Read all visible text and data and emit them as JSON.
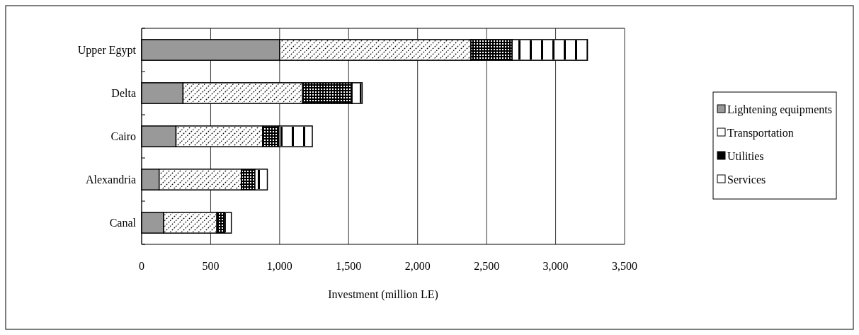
{
  "chart_data": {
    "type": "bar",
    "orientation": "horizontal",
    "stacked": true,
    "xlabel": "Investment (million LE)",
    "categories": [
      "Upper Egypt",
      "Delta",
      "Cairo",
      "Alexandria",
      "Canal"
    ],
    "series": [
      {
        "name": "Lightening equipments",
        "color": "#999999",
        "values": [
          1000,
          300,
          249,
          127,
          160
        ]
      },
      {
        "name": "Transportation",
        "color": "#ffffff",
        "values": [
          1385,
          867,
          628,
          596,
          385
        ]
      },
      {
        "name": "Utilities",
        "color": "#000000",
        "values": [
          300,
          358,
          118,
          98,
          56
        ]
      },
      {
        "name": "Services",
        "color": "#ffffff",
        "values": [
          546,
          73,
          242,
          90,
          49
        ]
      }
    ],
    "xlim": [
      0,
      3500
    ],
    "xticks": [
      0,
      {
        "value": 500,
        "label": "500"
      },
      {
        "value": 1000,
        "label": "1,000"
      },
      {
        "value": 1500,
        "label": "1,500"
      },
      {
        "value": 2000,
        "label": "2,000"
      },
      {
        "value": 2500,
        "label": "2,500"
      },
      {
        "value": 3000,
        "label": "3,000"
      },
      {
        "value": 3500,
        "label": "3,500"
      }
    ],
    "grid": "x",
    "legend": "right"
  }
}
